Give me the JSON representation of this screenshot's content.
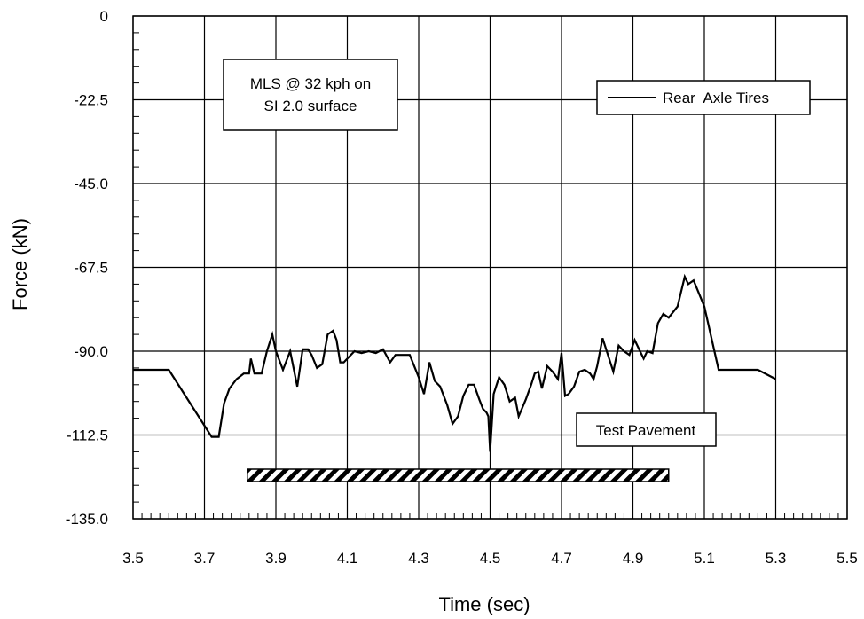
{
  "chart_data": {
    "type": "line",
    "xlabel": "Time (sec)",
    "ylabel": "Force (kN)",
    "xlim": [
      3.5,
      5.5
    ],
    "ylim": [
      -135.0,
      0
    ],
    "x_ticks": [
      "3.5",
      "3.7",
      "3.9",
      "4.1",
      "4.3",
      "4.5",
      "4.7",
      "4.9",
      "5.1",
      "5.3",
      "5.5"
    ],
    "y_ticks": [
      "0",
      "-22.5",
      "-45.0",
      "-67.5",
      "-90.0",
      "-112.5",
      "-135.0"
    ],
    "grid": "horizontal and vertical at labeled ticks",
    "legend_position": "top-right",
    "series": [
      {
        "name": "Rear  Axle Tires",
        "color": "#000000",
        "x": [
          3.5,
          3.6,
          3.72,
          3.74,
          3.755,
          3.77,
          3.79,
          3.81,
          3.825,
          3.83,
          3.84,
          3.86,
          3.875,
          3.89,
          3.9,
          3.92,
          3.94,
          3.96,
          3.975,
          3.99,
          4.0,
          4.015,
          4.03,
          4.045,
          4.06,
          4.07,
          4.08,
          4.09,
          4.1,
          4.12,
          4.14,
          4.16,
          4.18,
          4.2,
          4.22,
          4.235,
          4.25,
          4.275,
          4.3,
          4.315,
          4.33,
          4.345,
          4.36,
          4.38,
          4.395,
          4.41,
          4.425,
          4.44,
          4.455,
          4.47,
          4.48,
          4.49,
          4.495,
          4.5,
          4.51,
          4.525,
          4.54,
          4.555,
          4.57,
          4.58,
          4.6,
          4.615,
          4.625,
          4.635,
          4.645,
          4.66,
          4.675,
          4.69,
          4.7,
          4.71,
          4.72,
          4.735,
          4.75,
          4.765,
          4.78,
          4.79,
          4.8,
          4.815,
          4.83,
          4.845,
          4.86,
          4.875,
          4.89,
          4.905,
          4.92,
          4.93,
          4.94,
          4.955,
          4.97,
          4.985,
          5.0,
          5.025,
          5.045,
          5.055,
          5.07,
          5.1,
          5.14,
          5.17,
          5.2,
          5.25,
          5.3
        ],
        "y": [
          -95,
          -95,
          -113,
          -113,
          -104,
          -100,
          -97.5,
          -96,
          -96,
          -92,
          -96,
          -96,
          -90,
          -85.5,
          -90,
          -95,
          -90,
          -99.5,
          -89.5,
          -89.5,
          -91,
          -94.5,
          -93.5,
          -85.5,
          -84.5,
          -87,
          -93,
          -93,
          -92,
          -90,
          -90.5,
          -90,
          -90.5,
          -89.5,
          -93,
          -91,
          -91,
          -91,
          -97,
          -101.5,
          -93,
          -98,
          -99.5,
          -104.5,
          -109.5,
          -107.5,
          -102,
          -99,
          -99,
          -103,
          -105.5,
          -106.5,
          -107.5,
          -117,
          -101.5,
          -97,
          -99,
          -103.5,
          -102.5,
          -107.5,
          -103,
          -99,
          -96,
          -95.5,
          -100,
          -94,
          -95.5,
          -97.5,
          -90.5,
          -102,
          -101.5,
          -99.5,
          -95.5,
          -95,
          -96,
          -97.5,
          -94,
          -86.5,
          -91,
          -95.5,
          -88.5,
          -90,
          -91,
          -87,
          -90,
          -92,
          -90,
          -90.5,
          -82.5,
          -80,
          -81,
          -78,
          -70,
          -72,
          -71,
          -78,
          -95,
          -95,
          -95,
          -95,
          -97.5
        ]
      }
    ],
    "annotations": {
      "info_box": [
        "MLS @ 32 kph on",
        "SI 2.0 surface"
      ],
      "pavement_label": "Test Pavement",
      "pavement_range": [
        3.82,
        5.0
      ]
    }
  }
}
